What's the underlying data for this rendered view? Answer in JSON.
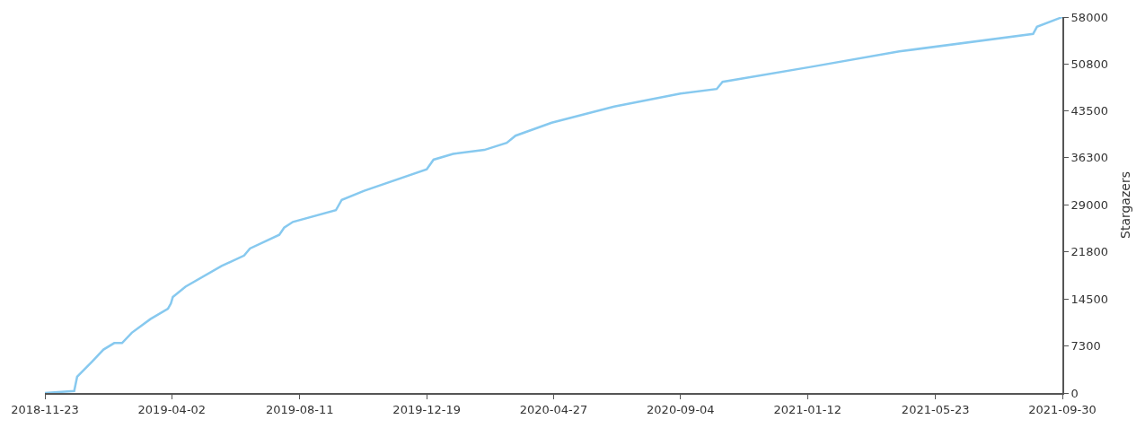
{
  "chart_data": {
    "type": "line",
    "ylabel": "Stargazers",
    "x": [
      "2018-11-23",
      "2018-12-23",
      "2018-12-26",
      "2019-01-10",
      "2019-01-22",
      "2019-02-02",
      "2019-02-10",
      "2019-02-20",
      "2019-03-11",
      "2019-03-29",
      "2019-04-01",
      "2019-04-03",
      "2019-04-16",
      "2019-05-23",
      "2019-06-15",
      "2019-06-21",
      "2019-07-21",
      "2019-07-26",
      "2019-08-04",
      "2019-09-17",
      "2019-09-23",
      "2019-10-16",
      "2019-12-19",
      "2019-12-26",
      "2020-01-15",
      "2020-02-16",
      "2020-03-10",
      "2020-03-19",
      "2020-04-25",
      "2020-06-28",
      "2020-09-04",
      "2020-10-11",
      "2020-10-17",
      "2021-01-15",
      "2021-04-16",
      "2021-08-31",
      "2021-09-04",
      "2021-09-30"
    ],
    "series": [
      {
        "color": "#87c9ef",
        "values": [
          0,
          300,
          2500,
          4800,
          6700,
          7700,
          7700,
          9300,
          11400,
          13000,
          13800,
          14800,
          16400,
          19600,
          21200,
          22300,
          24400,
          25500,
          26400,
          28200,
          29800,
          31200,
          34500,
          36000,
          36900,
          37500,
          38600,
          39700,
          41700,
          44200,
          46200,
          46900,
          48000,
          50300,
          52700,
          55400,
          56500,
          58000
        ]
      }
    ],
    "xlim": [
      "2018-11-23",
      "2021-09-30"
    ],
    "xticks": [
      "2018-11-23",
      "2019-04-02",
      "2019-08-11",
      "2019-12-19",
      "2020-04-27",
      "2020-09-04",
      "2021-01-12",
      "2021-05-23",
      "2021-09-30"
    ],
    "ylim": [
      0,
      58000
    ],
    "yticks": [
      0,
      7300,
      14500,
      21800,
      29000,
      36300,
      43500,
      50800,
      58000
    ],
    "marker": "none",
    "line_style": "solid"
  }
}
